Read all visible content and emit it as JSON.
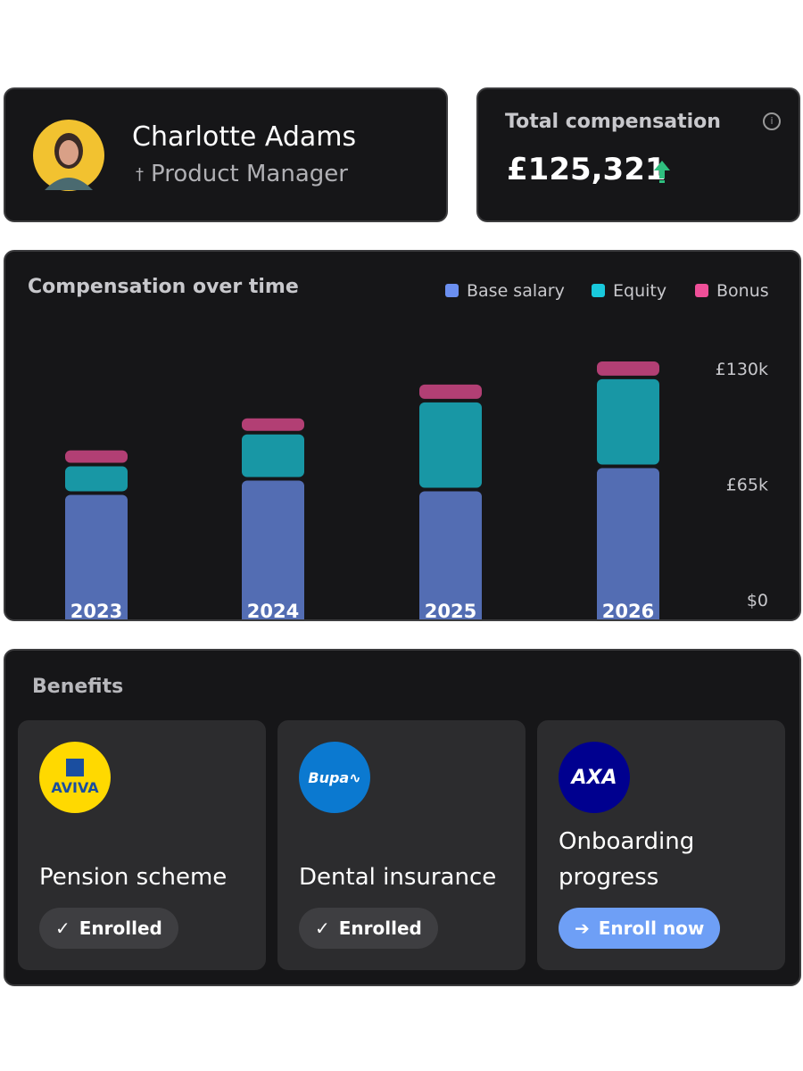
{
  "profile": {
    "name": "Charlotte Adams",
    "role": "Product Manager"
  },
  "compensation": {
    "label": "Total compensation",
    "value": "£125,321"
  },
  "chart_data": {
    "type": "stacked-bar",
    "title": "Compensation over time",
    "categories": [
      "2023",
      "2024",
      "2025",
      "2026"
    ],
    "series": [
      {
        "name": "Base salary",
        "color": "#6b8ff0",
        "values": [
          60000,
          68000,
          62000,
          75000
        ]
      },
      {
        "name": "Equity",
        "color": "#19c9dc",
        "values": [
          16000,
          26000,
          50000,
          50000
        ]
      },
      {
        "name": "Bonus",
        "color": "#ee4f98",
        "values": [
          9000,
          9000,
          10000,
          10000
        ]
      }
    ],
    "ylim": [
      0,
      136000
    ],
    "yticks": [
      {
        "value": 0,
        "label": "$0"
      },
      {
        "value": 65000,
        "label": "£65k"
      },
      {
        "value": 130000,
        "label": "£130k"
      }
    ]
  },
  "benefits": {
    "title": "Benefits",
    "items": [
      {
        "logo": "AVIVA",
        "name": "Pension scheme",
        "status": "Enrolled"
      },
      {
        "logo": "Bupa",
        "name": "Dental insurance",
        "status": "Enrolled"
      },
      {
        "logo": "AXA",
        "name": "Onboarding progress",
        "status": "Enroll now"
      }
    ]
  }
}
